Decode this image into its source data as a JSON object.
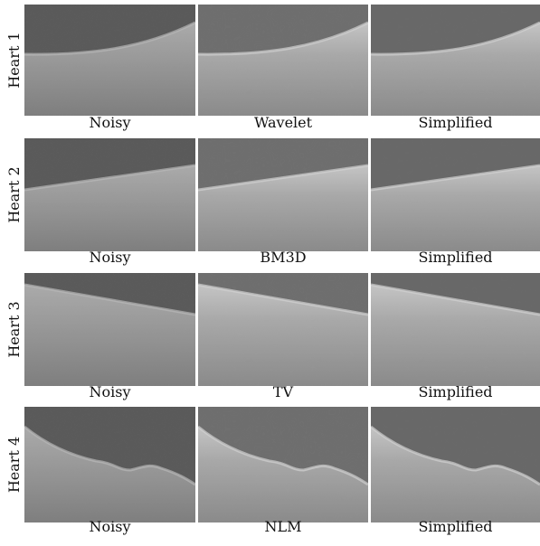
{
  "rows": [
    {
      "label": "Heart 1",
      "captions": [
        "Noisy",
        "Wavelet",
        "Simplified"
      ]
    },
    {
      "label": "Heart 2",
      "captions": [
        "Noisy",
        "BM3D",
        "Simplified"
      ]
    },
    {
      "label": "Heart 3",
      "captions": [
        "Noisy",
        "TV",
        "Simplified"
      ]
    },
    {
      "label": "Heart 4",
      "captions": [
        "Noisy",
        "NLM",
        "Simplified"
      ]
    }
  ]
}
